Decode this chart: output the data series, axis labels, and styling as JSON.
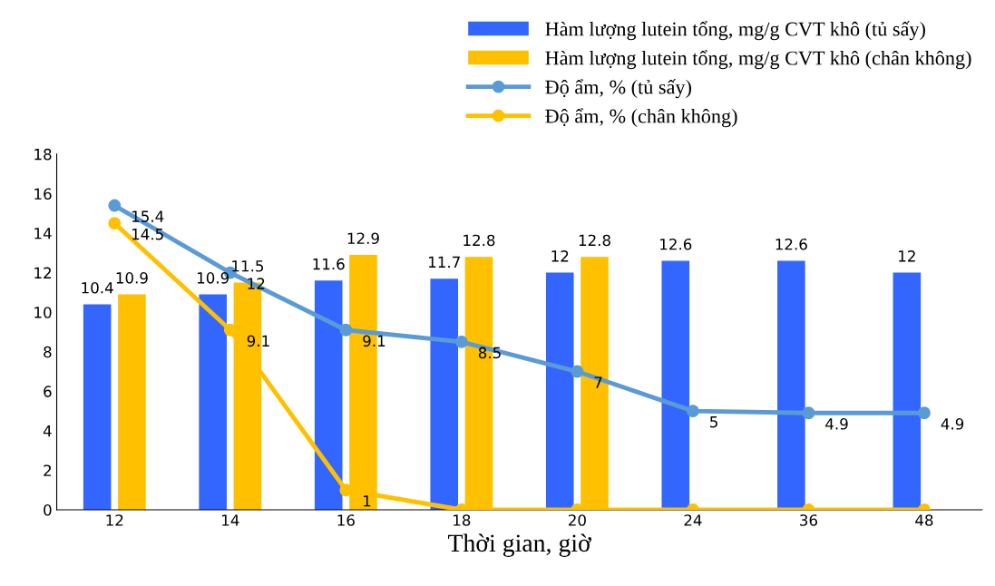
{
  "chart_data": {
    "type": "bar",
    "xlabel": "Thời gian, giờ",
    "categories": [
      "12",
      "14",
      "16",
      "18",
      "20",
      "24",
      "36",
      "48"
    ],
    "series": [
      {
        "name": "Hàm lượng lutein tổng, mg/g CVT khô (tủ sấy)",
        "color": "#3366ff",
        "values": [
          10.4,
          10.9,
          11.6,
          11.7,
          12,
          12.6,
          12.6,
          12
        ],
        "value_labels": [
          "10.4",
          "10.9",
          "11.6",
          "11.7",
          "12",
          "12.6",
          "12.6",
          "12"
        ]
      },
      {
        "name": "Hàm lượng lutein tổng, mg/g CVT khô (chân không)",
        "color": "#ffc000",
        "values": [
          10.9,
          11.5,
          12.9,
          12.8,
          12.8,
          null,
          null,
          null
        ],
        "value_labels": [
          "10.9",
          "11.5",
          "12.9",
          "12.8",
          "12.8",
          null,
          null,
          null
        ]
      },
      {
        "name": "Độ ẩm, % (tủ sấy)",
        "type": "line",
        "color": "#5b9bd5",
        "values": [
          15.4,
          12,
          9.1,
          8.5,
          7,
          5,
          4.9,
          4.9
        ],
        "value_labels": [
          "15.4",
          "12",
          "9.1",
          "8.5",
          "7",
          "5",
          "4.9",
          "4.9"
        ]
      },
      {
        "name": "Độ ẩm, % (chân không)",
        "type": "line",
        "color": "#ffc000",
        "values": [
          14.5,
          9.1,
          1,
          0,
          0,
          0,
          0,
          0
        ],
        "value_labels": [
          "14.5",
          "9.1",
          "1",
          null,
          null,
          null,
          null,
          null
        ]
      }
    ],
    "ylim": [
      0,
      18
    ],
    "yticks": [
      0,
      2,
      4,
      6,
      8,
      10,
      12,
      14,
      16,
      18
    ],
    "marker": "circle",
    "line_style": "solid",
    "legend": "top right"
  }
}
